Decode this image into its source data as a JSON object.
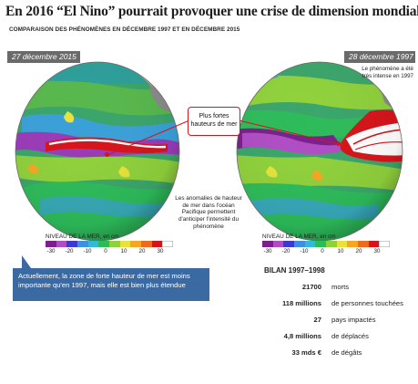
{
  "header": {
    "title": "En 2016 “El Nino” pourrait provoquer une crise de dimension mondiale",
    "subtitle": "COMPARAISON DES PHÉNOMÈNES EN DÉCEMBRE 1997 ET EN DÉCEMBRE 2015"
  },
  "maps": {
    "left": {
      "date": "27 décembre 2015"
    },
    "right": {
      "date": "28 décembre 1997",
      "note": "Le phénomène a été très intense en 1997"
    }
  },
  "callout": {
    "text": "Plus fortes hauteurs de mer"
  },
  "middle_text": "Les anomalies de hauteur de mer dans l'océan Pacifique permettent d'anticiper l'intensité du phénomène",
  "legend": {
    "title": "NIVEAU DE LA MER, en cm",
    "ticks": [
      "-30",
      "-20",
      "-10",
      "0",
      "10",
      "20",
      "30"
    ],
    "colors": [
      "#7a1f8c",
      "#b04cc4",
      "#3a3ad0",
      "#3f8fe0",
      "#34b8d8",
      "#2dbb5a",
      "#8fd13b",
      "#e8e23a",
      "#f6a623",
      "#ee6a20",
      "#d6141a",
      "#ffffff"
    ]
  },
  "info": "Actuellement, la zone de forte hauteur de mer est moins importante qu'en 1997, mais elle est bien plus étendue",
  "bilan": {
    "title": "BILAN 1997–1998",
    "rows": [
      {
        "value": "21700",
        "label": "morts"
      },
      {
        "value": "118 millions",
        "label": "de personnes touchées"
      },
      {
        "value": "27",
        "label": "pays impactés"
      },
      {
        "value": "4,8 millions",
        "label": "de déplacés"
      },
      {
        "value": "33 mds €",
        "label": "de dégâts"
      }
    ]
  }
}
